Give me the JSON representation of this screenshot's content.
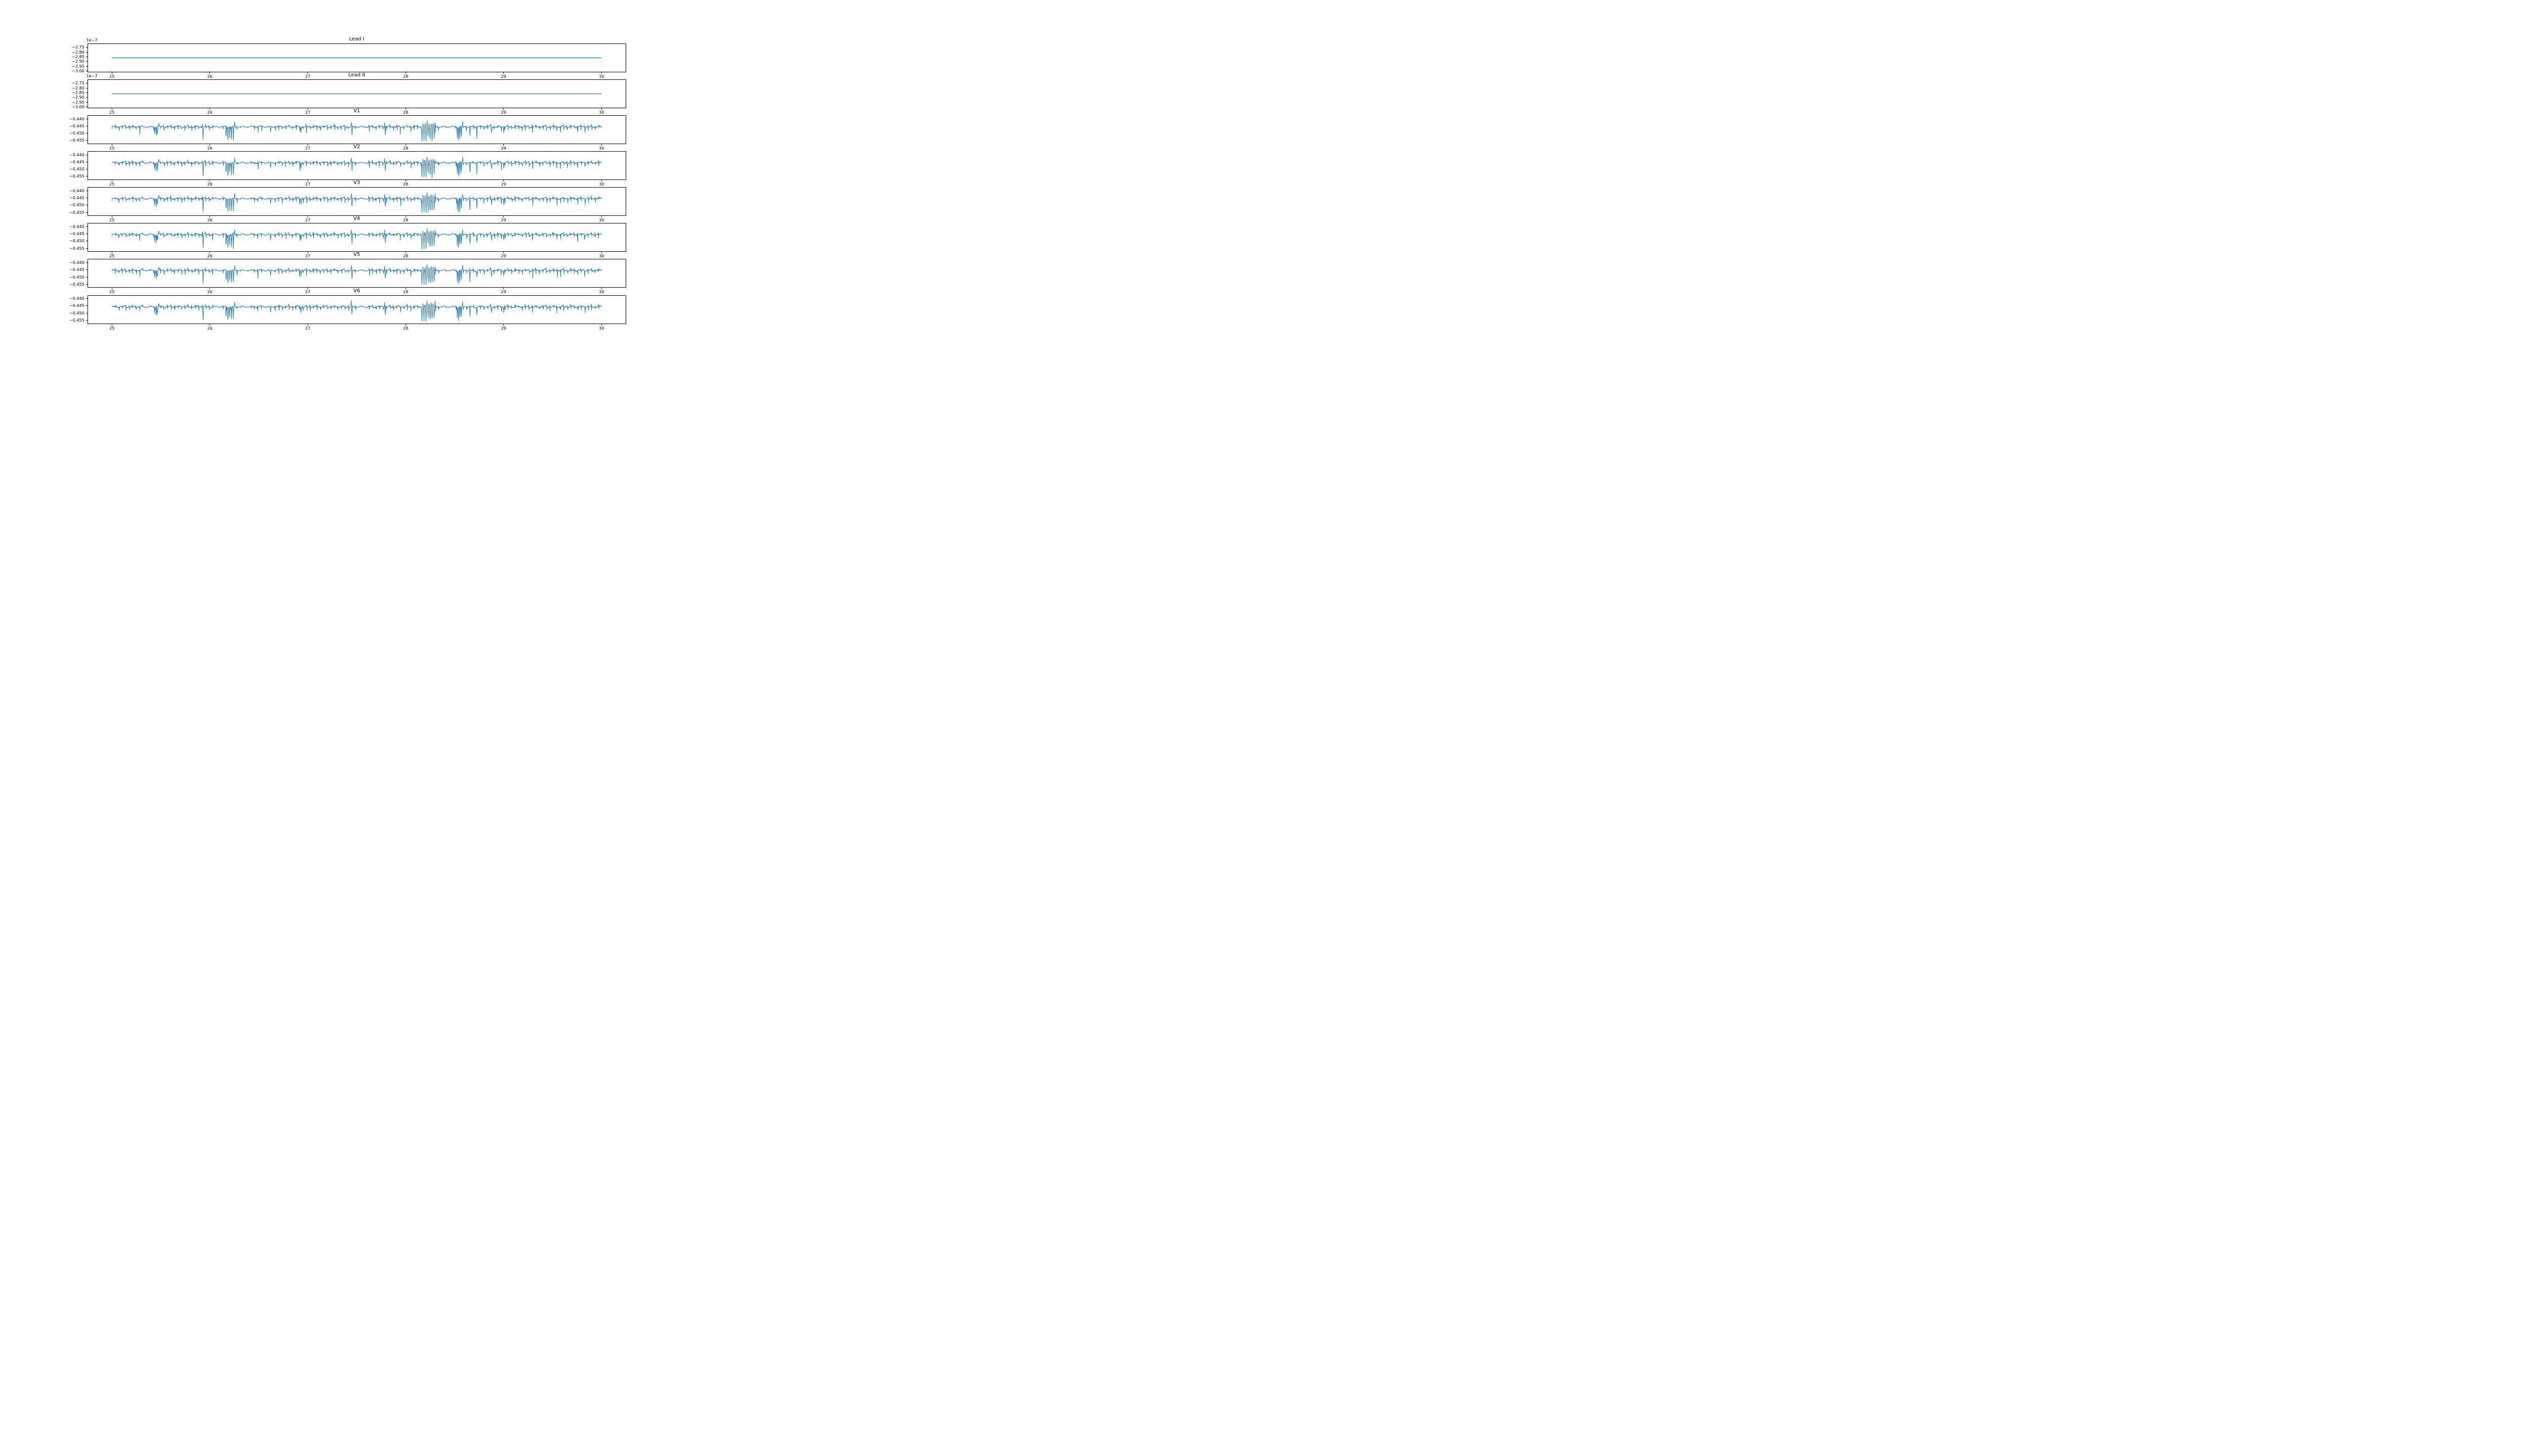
{
  "figure": {
    "background": "#ffffff"
  },
  "chart_data": {
    "type": "line",
    "description": "8 stacked ECG lead subplots over time window 25-30 s",
    "color": "#1f77b4",
    "x": {
      "lim": [
        24.75,
        30.25
      ],
      "data_range": [
        25,
        30
      ],
      "ticks": [
        25,
        26,
        27,
        28,
        29,
        30
      ],
      "tick_labels": [
        "25",
        "26",
        "27",
        "28",
        "29",
        "30"
      ]
    },
    "subplots": [
      {
        "id": "lead-i",
        "title": "Lead I",
        "kind": "flat",
        "offset_label": "1e−7",
        "value": -2.86,
        "ylim": [
          -3.012,
          -2.708
        ],
        "ytick_values": [
          -2.75,
          -2.8,
          -2.85,
          -2.9,
          -2.95,
          -3.0
        ],
        "ytick_labels": [
          "−2.75",
          "−2.80",
          "−2.85",
          "−2.90",
          "−2.95",
          "−3.00"
        ]
      },
      {
        "id": "lead-ii",
        "title": "Lead II",
        "kind": "flat",
        "offset_label": "1e−7",
        "value": -2.86,
        "ylim": [
          -3.012,
          -2.708
        ],
        "ytick_values": [
          -2.75,
          -2.8,
          -2.85,
          -2.9,
          -2.95,
          -3.0
        ],
        "ytick_labels": [
          "−2.75",
          "−2.80",
          "−2.85",
          "−2.90",
          "−2.95",
          "−3.00"
        ]
      },
      {
        "id": "v1",
        "title": "V1",
        "kind": "ecg",
        "seed": 3
      },
      {
        "id": "v2",
        "title": "V2",
        "kind": "ecg",
        "seed": 17
      },
      {
        "id": "v3",
        "title": "V3",
        "kind": "ecg",
        "seed": 29
      },
      {
        "id": "v4",
        "title": "V4",
        "kind": "ecg",
        "seed": 41
      },
      {
        "id": "v5",
        "title": "V5",
        "kind": "ecg",
        "seed": 53
      },
      {
        "id": "v6",
        "title": "V6",
        "kind": "ecg",
        "seed": 67
      }
    ],
    "ecg_model": {
      "baseline": -0.4455,
      "ylim": [
        -0.4575,
        -0.4375
      ],
      "ytick_values": [
        -0.44,
        -0.445,
        -0.45,
        -0.455
      ],
      "ytick_labels": [
        "−0.440",
        "−0.445",
        "−0.450",
        "−0.455"
      ],
      "samples": 1900,
      "beat_interval": 0.0355,
      "beat_up": 0.0011,
      "beat_down": 0.0022,
      "wiggle_amp": 0.00042,
      "calm_windows": [
        [
          25.315,
          25.425
        ],
        [
          26.03,
          26.13
        ],
        [
          26.28,
          26.42
        ],
        [
          26.55,
          26.66
        ],
        [
          27.5,
          27.61
        ],
        [
          28.34,
          28.5
        ]
      ],
      "events": [
        {
          "x": 25.435,
          "type": "cluster",
          "n": 3,
          "span": 0.03,
          "down": 0.0055,
          "end_up": 0.0025
        },
        {
          "x": 25.93,
          "type": "biphasic",
          "up": 0.0029,
          "down": 0.0093
        },
        {
          "x": 26.165,
          "type": "cluster",
          "n": 5,
          "span": 0.075,
          "down": 0.0107,
          "end_up": 0.003
        },
        {
          "x": 26.62,
          "type": "down",
          "down": 0.0042
        },
        {
          "x": 26.93,
          "type": "down",
          "down": 0.004
        },
        {
          "x": 27.45,
          "type": "biphasic",
          "up": 0.0027,
          "down": 0.0057
        },
        {
          "x": 27.79,
          "type": "biphasic",
          "up": 0.0034,
          "down": 0.0063
        },
        {
          "x": 28.165,
          "type": "burst",
          "n": 7,
          "span": 0.145,
          "down": 0.0106,
          "up": 0.0038
        },
        {
          "x": 28.525,
          "type": "cluster",
          "n": 4,
          "span": 0.042,
          "down": 0.0092,
          "end_up": 0.0032
        },
        {
          "x": 28.655,
          "type": "down",
          "down": 0.0077
        },
        {
          "x": 28.725,
          "type": "down",
          "down": 0.0057
        },
        {
          "x": 28.875,
          "type": "down",
          "down": 0.0047
        },
        {
          "x": 29.0,
          "type": "down",
          "down": 0.004
        }
      ]
    }
  }
}
